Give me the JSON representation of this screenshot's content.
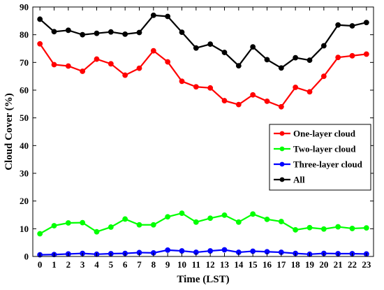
{
  "chart_data": {
    "type": "line",
    "xlabel": "Time (LST)",
    "ylabel": "Cloud Cover (%)",
    "xlim": [
      -0.5,
      23.5
    ],
    "ylim": [
      0,
      90
    ],
    "x": [
      0,
      1,
      2,
      3,
      4,
      5,
      6,
      7,
      8,
      9,
      10,
      11,
      12,
      13,
      14,
      15,
      16,
      17,
      18,
      19,
      20,
      21,
      22,
      23
    ],
    "x_tick_labels": [
      "0",
      "1",
      "2",
      "3",
      "4",
      "5",
      "6",
      "7",
      "8",
      "9",
      "10",
      "11",
      "12",
      "13",
      "14",
      "15",
      "16",
      "17",
      "18",
      "19",
      "20",
      "21",
      "22",
      "23"
    ],
    "y_ticks": [
      0,
      10,
      20,
      30,
      40,
      50,
      60,
      70,
      80,
      90
    ],
    "y_tick_labels": [
      "0",
      "10",
      "20",
      "30",
      "40",
      "50",
      "60",
      "70",
      "80",
      "90"
    ],
    "grid": false,
    "legend_position": "center-right",
    "series": [
      {
        "name": "One-layer cloud",
        "color": "#ff0000",
        "values": [
          76.7,
          69.2,
          68.7,
          66.8,
          71.2,
          69.5,
          65.4,
          67.9,
          74.2,
          70.2,
          63.2,
          61.2,
          60.8,
          56.2,
          54.8,
          58.3,
          56.0,
          54.0,
          61.0,
          59.4,
          65.0,
          71.8,
          72.4,
          73.0
        ]
      },
      {
        "name": "Two-layer cloud",
        "color": "#00ff00",
        "values": [
          8.2,
          11.1,
          12.1,
          12.2,
          8.9,
          10.6,
          13.5,
          11.4,
          11.4,
          14.3,
          15.6,
          12.4,
          13.8,
          14.9,
          12.4,
          15.3,
          13.4,
          12.6,
          9.6,
          10.4,
          9.9,
          10.7,
          10.1,
          10.3
        ]
      },
      {
        "name": "Three-layer cloud",
        "color": "#0000ff",
        "values": [
          0.6,
          0.7,
          0.9,
          1.1,
          0.8,
          1.0,
          1.1,
          1.4,
          1.3,
          2.3,
          2.0,
          1.5,
          2.0,
          2.4,
          1.5,
          1.9,
          1.7,
          1.5,
          1.1,
          0.8,
          1.1,
          1.0,
          1.0,
          0.9
        ]
      },
      {
        "name": "All",
        "color": "#000000",
        "values": [
          85.6,
          81.1,
          81.6,
          80.0,
          80.5,
          81.0,
          80.2,
          80.8,
          87.0,
          86.6,
          80.9,
          75.2,
          76.6,
          73.6,
          68.8,
          75.6,
          71.0,
          68.0,
          71.7,
          70.8,
          76.0,
          83.5,
          83.2,
          84.4
        ]
      }
    ]
  }
}
